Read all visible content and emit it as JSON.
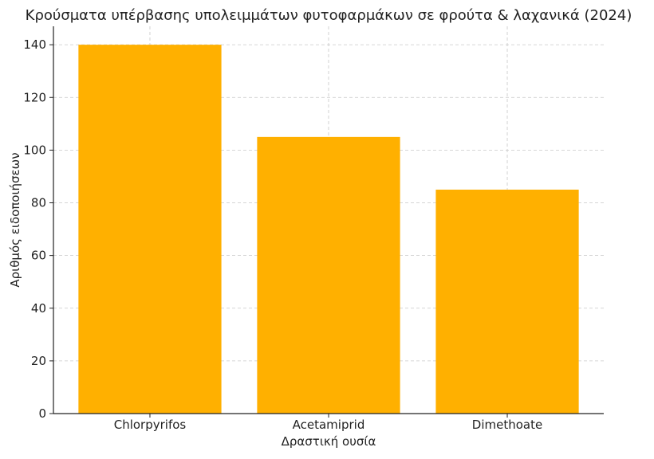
{
  "chart_data": {
    "type": "bar",
    "title": "Κρούσματα υπέρβασης υπολειμμάτων φυτοφαρμάκων σε φρούτα & λαχανικά (2024)",
    "xlabel": "Δραστική ουσία",
    "ylabel": "Αριθμός ειδοποιήσεων",
    "categories": [
      "Chlorpyrifos",
      "Acetamiprid",
      "Dimethoate"
    ],
    "values": [
      140,
      105,
      85
    ],
    "ylim": [
      0,
      147
    ],
    "yticks": [
      0,
      20,
      40,
      60,
      80,
      100,
      120,
      140
    ],
    "grid": true,
    "bar_color": "#FFB000"
  }
}
